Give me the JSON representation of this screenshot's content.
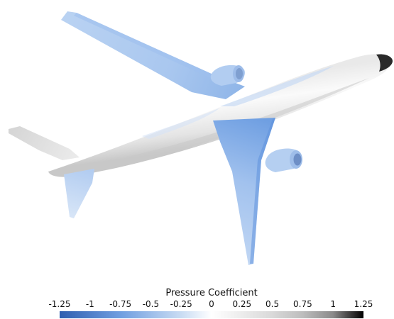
{
  "legend": {
    "title": "Pressure Coefficient",
    "ticks": [
      "-1.25",
      "-1",
      "-0.75",
      "-0.5",
      "-0.25",
      "0",
      "0.25",
      "0.5",
      "0.75",
      "1",
      "1.25"
    ],
    "min": -1.25,
    "max": 1.25,
    "color_stops": [
      {
        "value": -1.25,
        "color": "#2f5fb0"
      },
      {
        "value": -0.75,
        "color": "#6f9ee0"
      },
      {
        "value": -0.25,
        "color": "#c9dcf3"
      },
      {
        "value": 0,
        "color": "#ffffff"
      },
      {
        "value": 0.5,
        "color": "#d9d9d9"
      },
      {
        "value": 0.75,
        "color": "#bdbdbd"
      },
      {
        "value": 1,
        "color": "#8a8a8a"
      },
      {
        "value": 1.25,
        "color": "#000000"
      }
    ]
  },
  "colors": {
    "suction": "#a8c6ef",
    "suction_strong": "#7ea9e3",
    "fuselage_light": "#f4f4f4",
    "fuselage_shade": "#cfcfcf",
    "nose": "#2a2a2a"
  }
}
